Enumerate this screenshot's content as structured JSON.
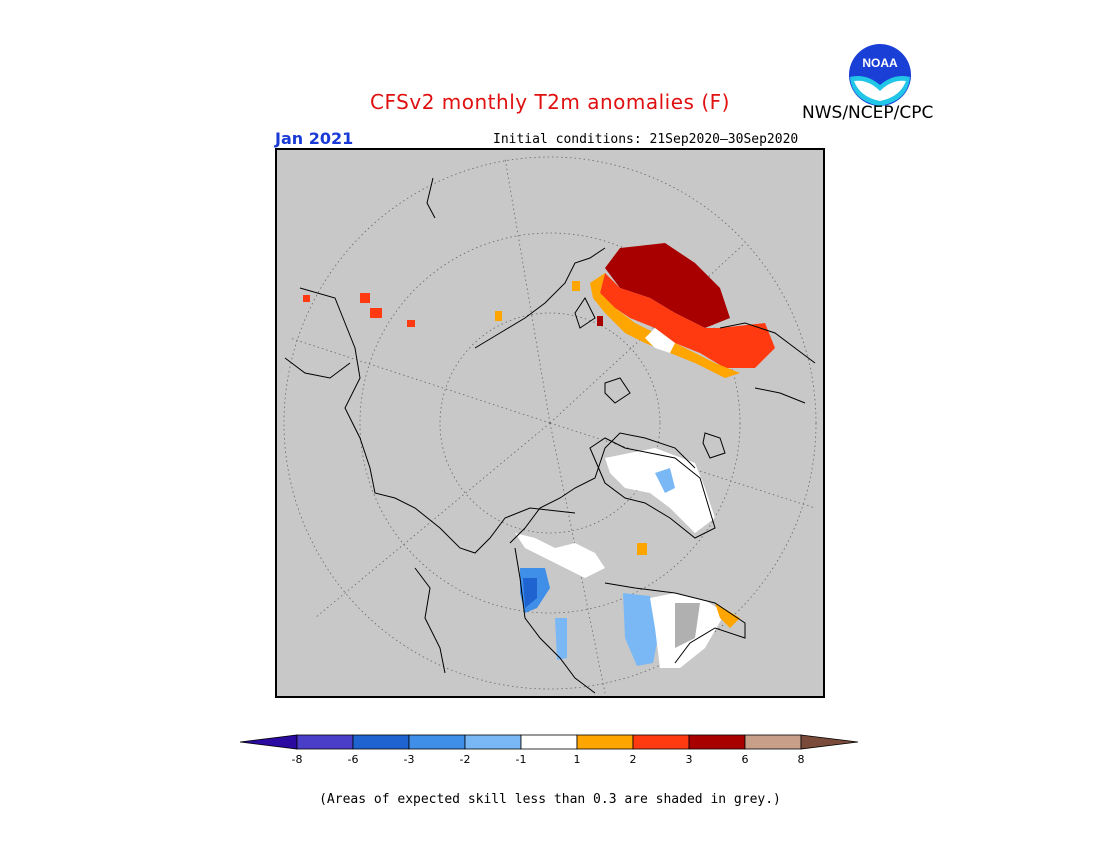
{
  "title": "CFSv2 monthly T2m anomalies (F)",
  "valid_month": "Jan 2021",
  "initial_conditions": "Initial conditions: 21Sep2020–30Sep2020",
  "agency": "NWS/NCEP/CPC",
  "logo_text": "NOAA",
  "note": "(Areas of expected skill less than 0.3 are shaded in grey.)",
  "colorbar": {
    "tick_labels": [
      "-8",
      "-6",
      "-3",
      "-2",
      "-1",
      "1",
      "2",
      "3",
      "6",
      "8"
    ],
    "colors": [
      "#2a0aa0",
      "#4a3ec8",
      "#1e63d0",
      "#3f8ee8",
      "#7ab8f5",
      "#ffffff",
      "#ffa500",
      "#ff3a10",
      "#a80000",
      "#c8a08a",
      "#7a4a3a"
    ]
  },
  "colors": {
    "title": "#e01010",
    "month": "#1a3ad6",
    "map_background": "#c8c8c8"
  }
}
